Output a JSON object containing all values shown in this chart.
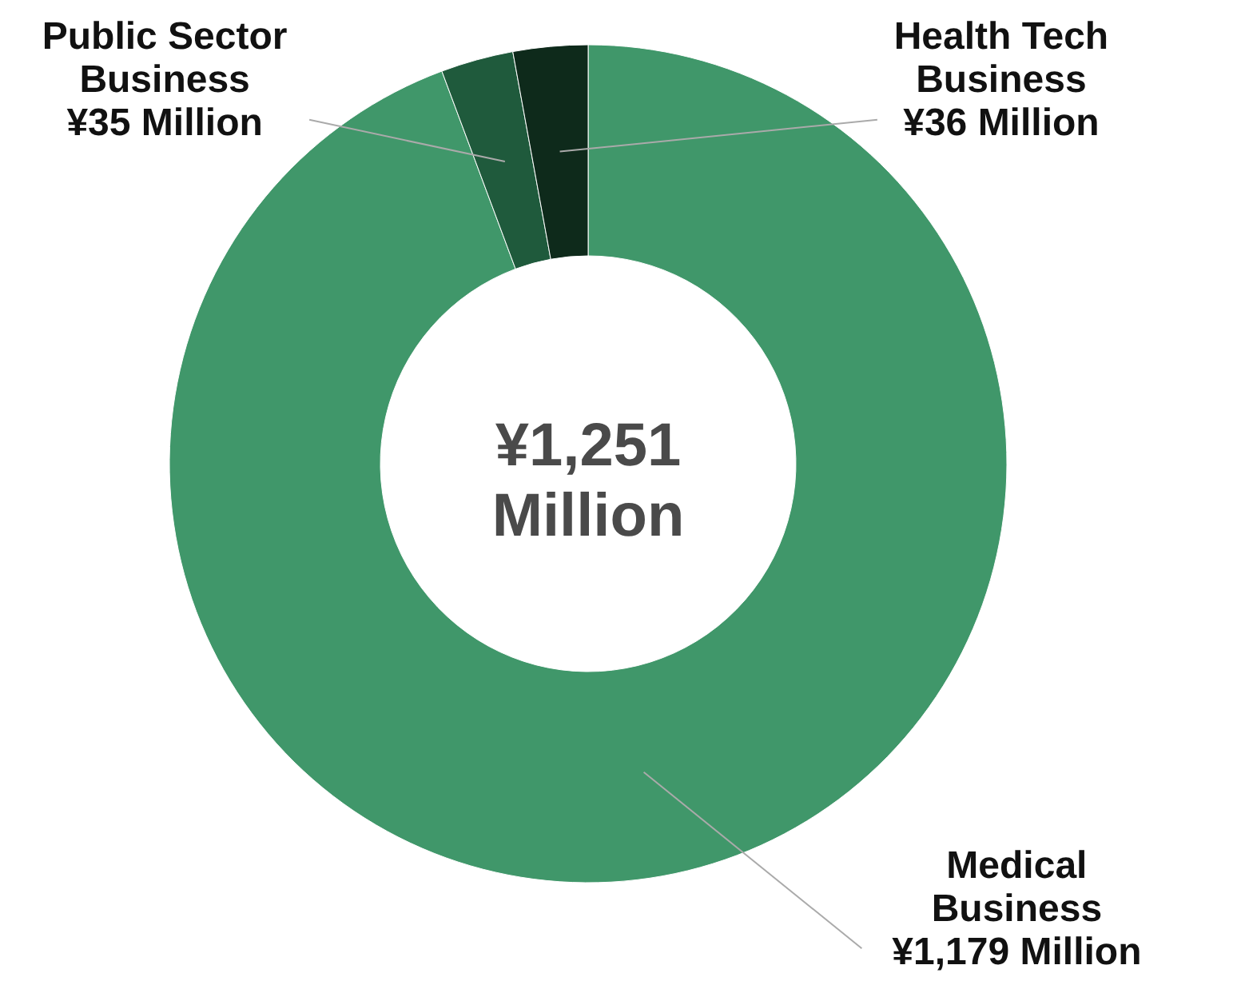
{
  "chart_data": {
    "type": "donut",
    "categories": [
      "Medical Business",
      "Public Sector Business",
      "Health Tech Business"
    ],
    "values": [
      1179,
      35,
      36
    ],
    "colors": [
      "#40976a",
      "#1f5a3c",
      "#0e2a1b"
    ],
    "value_labels": [
      "¥1,179 Million",
      "¥35 Million",
      "¥36 Million"
    ],
    "annotations": [
      "¥1,251 Million"
    ]
  }
}
